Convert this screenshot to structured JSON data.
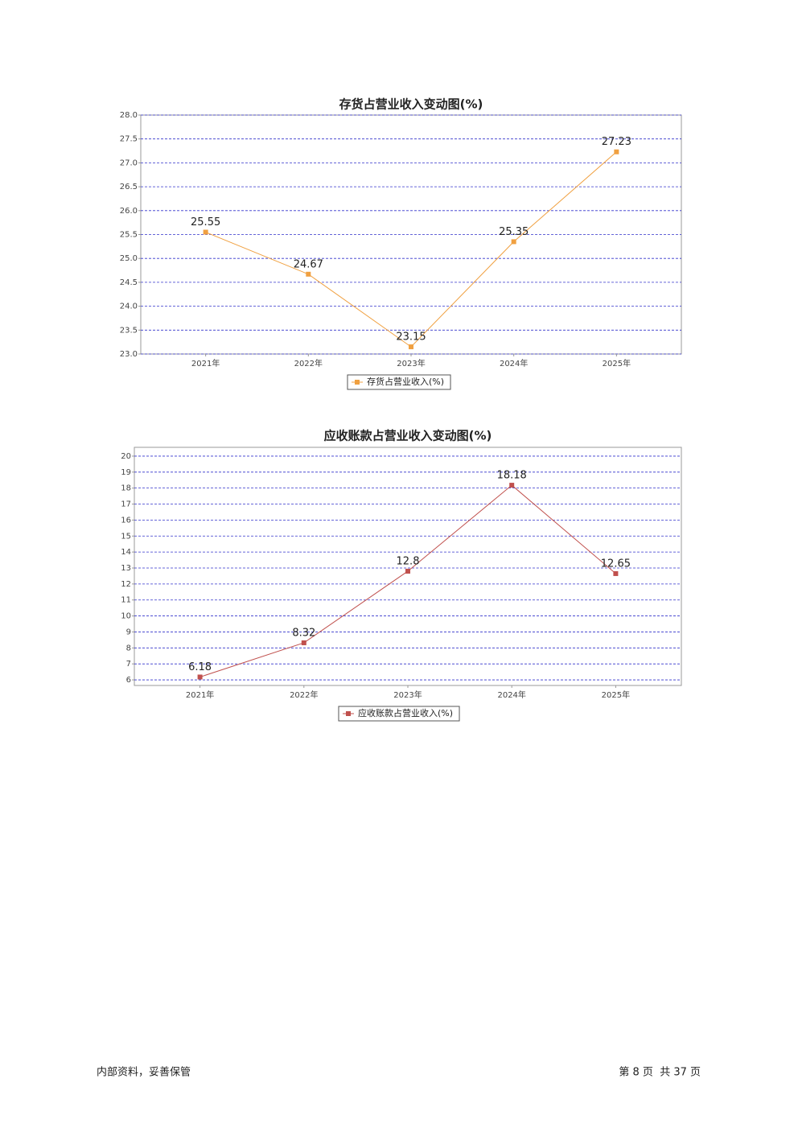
{
  "chart_data": [
    {
      "type": "line",
      "title": "存货占营业收入变动图(%)",
      "categories": [
        "2021年",
        "2022年",
        "2023年",
        "2024年",
        "2025年"
      ],
      "series": [
        {
          "name": "存货占营业收入(%)",
          "color": "#f0a040",
          "values": [
            25.55,
            24.67,
            23.15,
            25.35,
            27.23
          ]
        }
      ],
      "ylim": [
        23.0,
        28.0
      ],
      "yticks": [
        {
          "value": 23,
          "label": "23.0"
        },
        {
          "value": 23.5,
          "label": "23.5"
        },
        {
          "value": 24,
          "label": "24.0"
        },
        {
          "value": 24.5,
          "label": "24.5"
        },
        {
          "value": 25,
          "label": "25.0"
        },
        {
          "value": 25.5,
          "label": "25.5"
        },
        {
          "value": 26,
          "label": "26.0"
        },
        {
          "value": 26.5,
          "label": "26.5"
        },
        {
          "value": 27,
          "label": "27.0"
        },
        {
          "value": 27.5,
          "label": "27.5"
        },
        {
          "value": 28,
          "label": "28.0"
        }
      ],
      "grid": true
    },
    {
      "type": "line",
      "title": "应收账款占营业收入变动图(%)",
      "categories": [
        "2021年",
        "2022年",
        "2023年",
        "2024年",
        "2025年"
      ],
      "series": [
        {
          "name": "应收账款占营业收入(%)",
          "color": "#c0504d",
          "values": [
            6.18,
            8.32,
            12.8,
            18.18,
            12.65
          ]
        }
      ],
      "ylim": [
        5.65,
        20.55
      ],
      "yticks": [
        6,
        7,
        8,
        9,
        10,
        11,
        12,
        13,
        14,
        15,
        16,
        17,
        18,
        19,
        20
      ],
      "grid": true
    }
  ],
  "footer": {
    "left": "内部资料，妥善保管",
    "right": "第 8 页  共 37 页"
  }
}
